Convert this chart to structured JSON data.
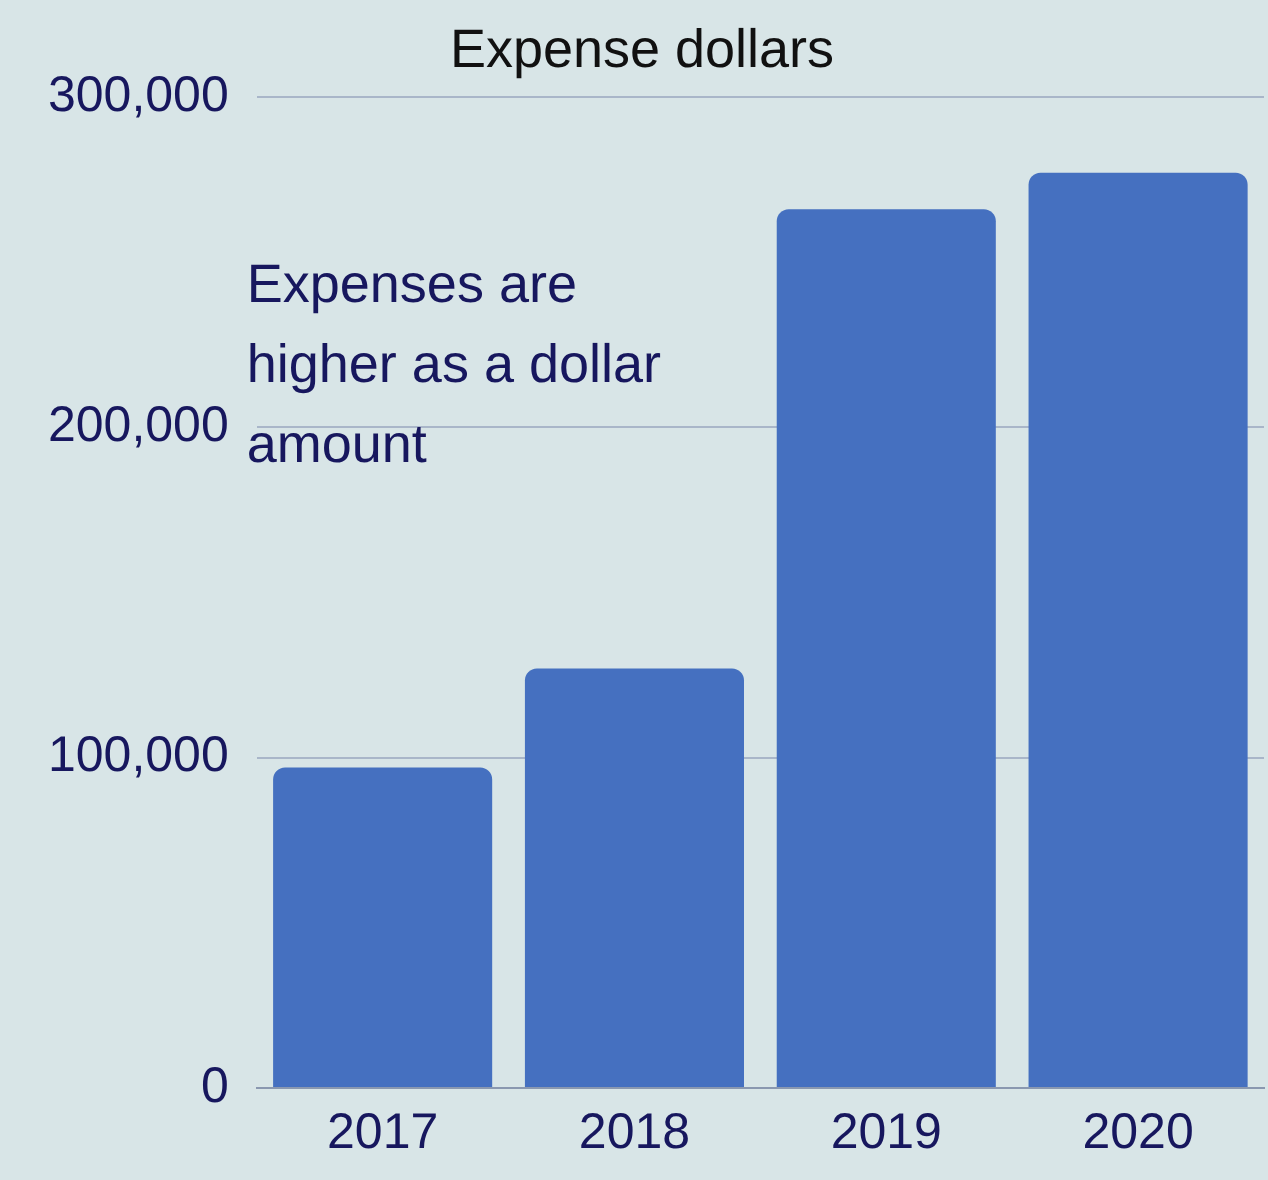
{
  "chart_data": {
    "type": "bar",
    "title": "Expense dollars",
    "categories": [
      "2017",
      "2018",
      "2019",
      "2020"
    ],
    "values": [
      97000,
      127000,
      266000,
      277000
    ],
    "color": "#4570c0",
    "ylim": [
      0,
      300000
    ],
    "yticks": [
      0,
      {
        "value": 100000,
        "label": "100,000"
      },
      {
        "value": 200000,
        "label": "200,000"
      },
      {
        "value": 300000,
        "label": "300,000"
      }
    ],
    "grid": "y",
    "annotations": [
      "Expenses are higher as a dollar amount"
    ]
  }
}
